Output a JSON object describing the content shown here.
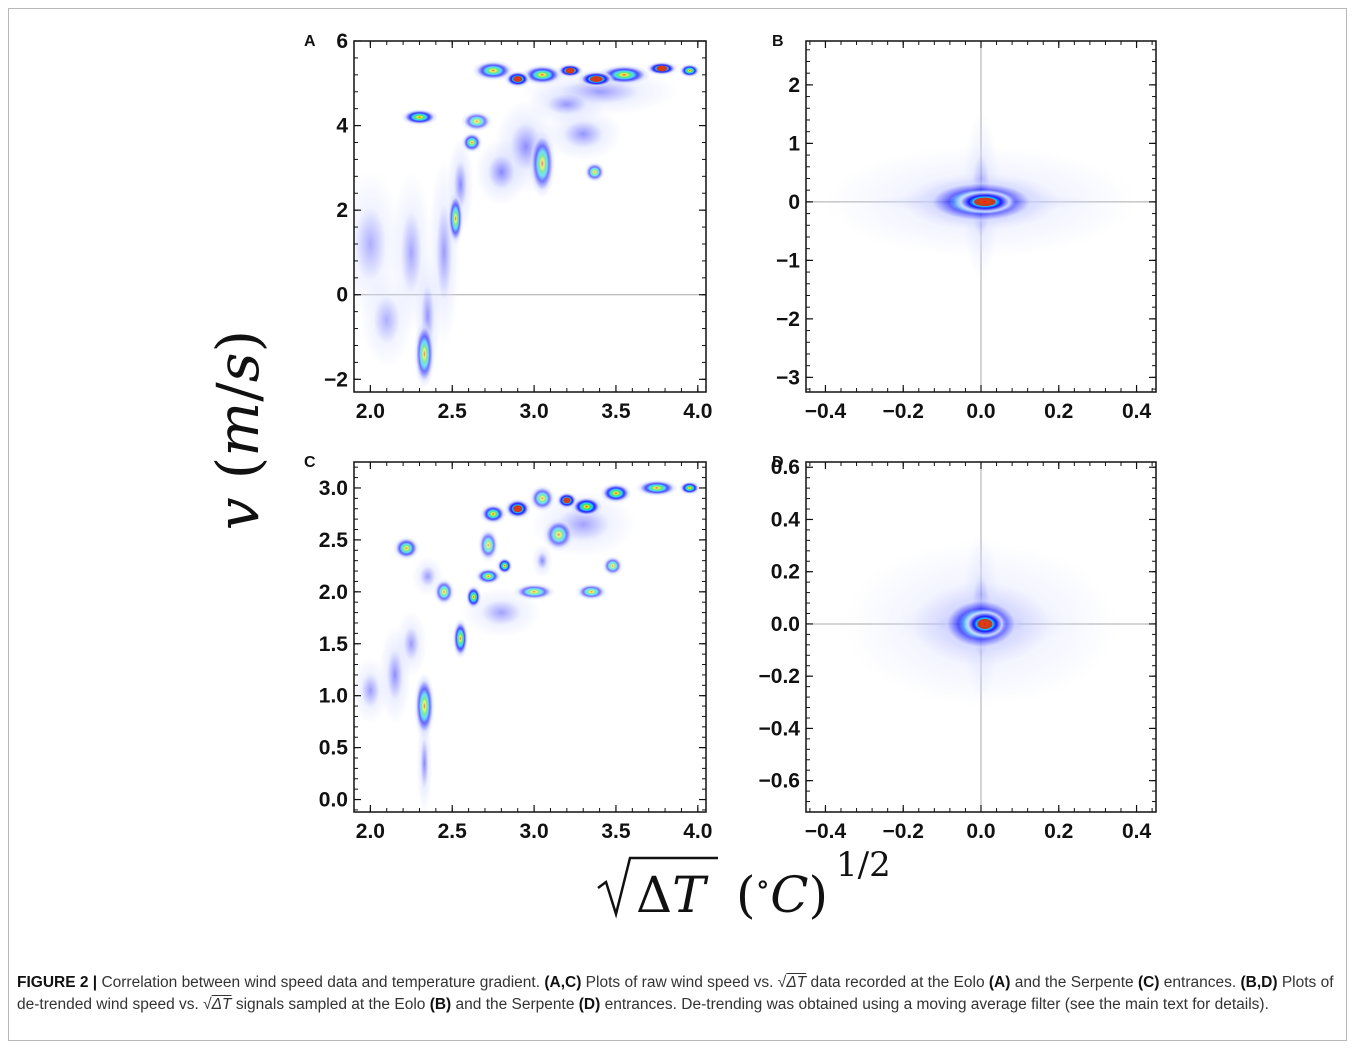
{
  "figure": {
    "y_axis_label": "v (m/s)",
    "x_axis_label": "√ΔT (°C)^1/2",
    "caption": {
      "prefix": "FIGURE 2 |",
      "s1": " Correlation between wind speed data and temperature gradient. ",
      "b1": "(A,C)",
      "s2": " Plots of raw wind speed vs. ",
      "s3": " data recorded at the Eolo ",
      "b2": "(A)",
      "s4": " and the Serpente ",
      "b3": "(C)",
      "s5": " entrances. ",
      "b4": "(B,D)",
      "s6": " Plots of de-trended wind speed vs. ",
      "s7": " signals sampled at the Eolo ",
      "b5": "(B)",
      "s8": " and the Serpente ",
      "b6": "(D)",
      "s9": " entrances. De-trending was obtained using a moving average filter (see the main text for details).",
      "sqrt_sym": "√",
      "delta_t": "ΔT"
    }
  },
  "colors": {
    "low": "#d6dcff",
    "mid": "#1a1aff",
    "cyan": "#20d0ff",
    "green": "#30e060",
    "yellow": "#f0f020",
    "red": "#e02010",
    "refline": "#a8a8a8"
  },
  "chart_data": [
    {
      "panel": "A",
      "type": "heatmap",
      "xlim": [
        1.9,
        4.05
      ],
      "ylim": [
        -2.3,
        6.0
      ],
      "xticks": [
        "2.0",
        "2.5",
        "3.0",
        "3.5",
        "4.0"
      ],
      "xtick_values": [
        2.0,
        2.5,
        3.0,
        3.5,
        4.0
      ],
      "yticks": [
        "−2",
        "0",
        "2",
        "4",
        "6"
      ],
      "ytick_values": [
        -2,
        0,
        2,
        4,
        6
      ],
      "hlines": [
        0
      ],
      "vlines": [],
      "density_regions": [
        {
          "x": 2.0,
          "y": 1.2,
          "sx": 0.12,
          "sy": 1.1,
          "level": 0.15
        },
        {
          "x": 2.1,
          "y": -0.6,
          "sx": 0.1,
          "sy": 0.7,
          "level": 0.15
        },
        {
          "x": 2.25,
          "y": 1.0,
          "sx": 0.08,
          "sy": 1.2,
          "level": 0.22
        },
        {
          "x": 2.33,
          "y": -1.4,
          "sx": 0.04,
          "sy": 0.5,
          "level": 0.6
        },
        {
          "x": 2.35,
          "y": -0.5,
          "sx": 0.05,
          "sy": 0.9,
          "level": 0.35
        },
        {
          "x": 2.45,
          "y": 1.0,
          "sx": 0.06,
          "sy": 1.4,
          "level": 0.3
        },
        {
          "x": 2.52,
          "y": 1.8,
          "sx": 0.03,
          "sy": 0.4,
          "level": 0.7
        },
        {
          "x": 2.55,
          "y": 2.6,
          "sx": 0.05,
          "sy": 0.7,
          "level": 0.45
        },
        {
          "x": 2.62,
          "y": 3.6,
          "sx": 0.04,
          "sy": 0.15,
          "level": 0.85
        },
        {
          "x": 2.3,
          "y": 4.2,
          "sx": 0.07,
          "sy": 0.12,
          "level": 1.2
        },
        {
          "x": 2.65,
          "y": 4.1,
          "sx": 0.06,
          "sy": 0.15,
          "level": 0.55
        },
        {
          "x": 2.8,
          "y": 2.9,
          "sx": 0.1,
          "sy": 0.5,
          "level": 0.45
        },
        {
          "x": 2.95,
          "y": 3.5,
          "sx": 0.12,
          "sy": 0.7,
          "level": 0.4
        },
        {
          "x": 3.05,
          "y": 3.1,
          "sx": 0.05,
          "sy": 0.5,
          "level": 0.55
        },
        {
          "x": 3.3,
          "y": 3.8,
          "sx": 0.15,
          "sy": 0.4,
          "level": 0.35
        },
        {
          "x": 3.37,
          "y": 2.9,
          "sx": 0.04,
          "sy": 0.15,
          "level": 0.6
        },
        {
          "x": 2.75,
          "y": 5.3,
          "sx": 0.08,
          "sy": 0.15,
          "level": 0.9
        },
        {
          "x": 2.9,
          "y": 5.1,
          "sx": 0.05,
          "sy": 0.12,
          "level": 1.6
        },
        {
          "x": 3.05,
          "y": 5.2,
          "sx": 0.08,
          "sy": 0.15,
          "level": 1.0
        },
        {
          "x": 3.22,
          "y": 5.3,
          "sx": 0.05,
          "sy": 0.1,
          "level": 1.7
        },
        {
          "x": 3.38,
          "y": 5.1,
          "sx": 0.07,
          "sy": 0.12,
          "level": 1.5
        },
        {
          "x": 3.55,
          "y": 5.2,
          "sx": 0.1,
          "sy": 0.15,
          "level": 1.0
        },
        {
          "x": 3.78,
          "y": 5.35,
          "sx": 0.06,
          "sy": 0.1,
          "level": 1.5
        },
        {
          "x": 3.95,
          "y": 5.3,
          "sx": 0.04,
          "sy": 0.1,
          "level": 1.3
        },
        {
          "x": 3.4,
          "y": 4.8,
          "sx": 0.3,
          "sy": 0.35,
          "level": 0.3
        },
        {
          "x": 3.2,
          "y": 4.5,
          "sx": 0.15,
          "sy": 0.3,
          "level": 0.3
        }
      ]
    },
    {
      "panel": "B",
      "type": "heatmap",
      "xlim": [
        -0.45,
        0.45
      ],
      "ylim": [
        -3.25,
        2.75
      ],
      "xticks": [
        "−0.4",
        "−0.2",
        "0.0",
        "0.2",
        "0.4"
      ],
      "xtick_values": [
        -0.4,
        -0.2,
        0.0,
        0.2,
        0.4
      ],
      "yticks": [
        "−3",
        "−2",
        "−1",
        "0",
        "1",
        "2"
      ],
      "ytick_values": [
        -3,
        -2,
        -1,
        0,
        1,
        2
      ],
      "hlines": [
        0
      ],
      "vlines": [
        0
      ],
      "density_regions": [
        {
          "x": 0.01,
          "y": 0.0,
          "sx": 0.05,
          "sy": 0.13,
          "level": 1.9
        },
        {
          "x": 0.0,
          "y": 0.0,
          "sx": 0.1,
          "sy": 0.25,
          "level": 0.5
        },
        {
          "x": 0.0,
          "y": 0.0,
          "sx": 0.18,
          "sy": 0.1,
          "level": 0.25
        },
        {
          "x": 0.0,
          "y": 0.1,
          "sx": 0.03,
          "sy": 0.9,
          "level": 0.22
        },
        {
          "x": 0.0,
          "y": 0.0,
          "sx": 0.25,
          "sy": 0.6,
          "level": 0.1
        }
      ]
    },
    {
      "panel": "C",
      "type": "heatmap",
      "xlim": [
        1.9,
        4.05
      ],
      "ylim": [
        -0.12,
        3.25
      ],
      "xticks": [
        "2.0",
        "2.5",
        "3.0",
        "3.5",
        "4.0"
      ],
      "xtick_values": [
        2.0,
        2.5,
        3.0,
        3.5,
        4.0
      ],
      "yticks": [
        "0.0",
        "0.5",
        "1.0",
        "1.5",
        "2.0",
        "2.5",
        "3.0"
      ],
      "ytick_values": [
        0.0,
        0.5,
        1.0,
        1.5,
        2.0,
        2.5,
        3.0
      ],
      "hlines": [],
      "vlines": [],
      "density_regions": [
        {
          "x": 2.0,
          "y": 1.05,
          "sx": 0.07,
          "sy": 0.2,
          "level": 0.3
        },
        {
          "x": 2.15,
          "y": 1.2,
          "sx": 0.06,
          "sy": 0.3,
          "level": 0.4
        },
        {
          "x": 2.33,
          "y": 0.9,
          "sx": 0.04,
          "sy": 0.2,
          "level": 0.7
        },
        {
          "x": 2.33,
          "y": 0.35,
          "sx": 0.03,
          "sy": 0.3,
          "level": 0.45
        },
        {
          "x": 2.25,
          "y": 1.5,
          "sx": 0.06,
          "sy": 0.2,
          "level": 0.3
        },
        {
          "x": 2.22,
          "y": 2.42,
          "sx": 0.05,
          "sy": 0.07,
          "level": 0.8
        },
        {
          "x": 2.35,
          "y": 2.15,
          "sx": 0.06,
          "sy": 0.12,
          "level": 0.3
        },
        {
          "x": 2.45,
          "y": 2.0,
          "sx": 0.04,
          "sy": 0.08,
          "level": 0.6
        },
        {
          "x": 2.55,
          "y": 1.55,
          "sx": 0.03,
          "sy": 0.12,
          "level": 1.0
        },
        {
          "x": 2.63,
          "y": 1.95,
          "sx": 0.03,
          "sy": 0.07,
          "level": 1.2
        },
        {
          "x": 2.72,
          "y": 2.15,
          "sx": 0.05,
          "sy": 0.05,
          "level": 0.9
        },
        {
          "x": 2.82,
          "y": 2.25,
          "sx": 0.03,
          "sy": 0.05,
          "level": 1.3
        },
        {
          "x": 2.72,
          "y": 2.45,
          "sx": 0.04,
          "sy": 0.1,
          "level": 0.5
        },
        {
          "x": 2.8,
          "y": 1.8,
          "sx": 0.15,
          "sy": 0.15,
          "level": 0.25
        },
        {
          "x": 3.0,
          "y": 2.0,
          "sx": 0.08,
          "sy": 0.05,
          "level": 0.6
        },
        {
          "x": 3.05,
          "y": 2.3,
          "sx": 0.04,
          "sy": 0.1,
          "level": 0.45
        },
        {
          "x": 3.15,
          "y": 2.55,
          "sx": 0.06,
          "sy": 0.1,
          "level": 0.5
        },
        {
          "x": 3.35,
          "y": 2.0,
          "sx": 0.06,
          "sy": 0.05,
          "level": 0.6
        },
        {
          "x": 3.48,
          "y": 2.25,
          "sx": 0.04,
          "sy": 0.06,
          "level": 0.55
        },
        {
          "x": 2.75,
          "y": 2.75,
          "sx": 0.05,
          "sy": 0.06,
          "level": 1.1
        },
        {
          "x": 2.9,
          "y": 2.8,
          "sx": 0.05,
          "sy": 0.06,
          "level": 1.6
        },
        {
          "x": 3.05,
          "y": 2.9,
          "sx": 0.05,
          "sy": 0.08,
          "level": 0.6
        },
        {
          "x": 3.2,
          "y": 2.88,
          "sx": 0.04,
          "sy": 0.05,
          "level": 1.7
        },
        {
          "x": 3.32,
          "y": 2.82,
          "sx": 0.06,
          "sy": 0.06,
          "level": 1.4
        },
        {
          "x": 3.5,
          "y": 2.95,
          "sx": 0.06,
          "sy": 0.06,
          "level": 1.2
        },
        {
          "x": 3.75,
          "y": 3.0,
          "sx": 0.08,
          "sy": 0.05,
          "level": 1.0
        },
        {
          "x": 3.95,
          "y": 3.0,
          "sx": 0.04,
          "sy": 0.04,
          "level": 1.35
        },
        {
          "x": 3.3,
          "y": 2.65,
          "sx": 0.2,
          "sy": 0.2,
          "level": 0.25
        }
      ]
    },
    {
      "panel": "D",
      "type": "heatmap",
      "xlim": [
        -0.45,
        0.45
      ],
      "ylim": [
        -0.72,
        0.62
      ],
      "xticks": [
        "−0.4",
        "−0.2",
        "0.0",
        "0.2",
        "0.4"
      ],
      "xtick_values": [
        -0.4,
        -0.2,
        0.0,
        0.2,
        0.4
      ],
      "yticks": [
        "−0.6",
        "−0.4",
        "−0.2",
        "0.0",
        "0.2",
        "0.4",
        "0.6"
      ],
      "ytick_values": [
        -0.6,
        -0.4,
        -0.2,
        0.0,
        0.2,
        0.4,
        0.6
      ],
      "hlines": [
        0
      ],
      "vlines": [
        0
      ],
      "density_regions": [
        {
          "x": 0.01,
          "y": 0.0,
          "sx": 0.035,
          "sy": 0.035,
          "level": 1.9
        },
        {
          "x": 0.0,
          "y": 0.0,
          "sx": 0.07,
          "sy": 0.07,
          "level": 0.6
        },
        {
          "x": 0.0,
          "y": 0.0,
          "sx": 0.14,
          "sy": 0.06,
          "level": 0.2
        },
        {
          "x": 0.0,
          "y": 0.03,
          "sx": 0.03,
          "sy": 0.2,
          "level": 0.25
        },
        {
          "x": 0.0,
          "y": 0.0,
          "sx": 0.22,
          "sy": 0.2,
          "level": 0.08
        }
      ]
    }
  ]
}
